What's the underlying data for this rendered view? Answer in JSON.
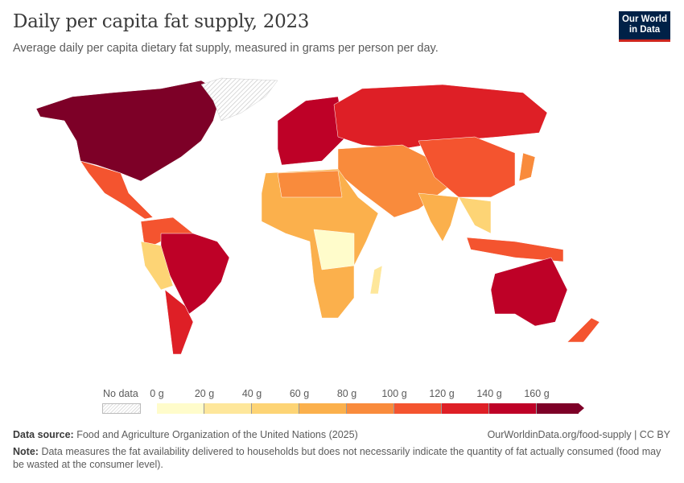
{
  "header": {
    "title": "Daily per capita fat supply, 2023",
    "subtitle": "Average daily per capita dietary fat supply, measured in grams per person per day.",
    "logo": "Our World in Data"
  },
  "legend": {
    "no_data_label": "No data",
    "ticks": [
      "0 g",
      "20 g",
      "40 g",
      "60 g",
      "80 g",
      "100 g",
      "120 g",
      "140 g",
      "160 g"
    ],
    "colors": [
      "#fffccb",
      "#fee79b",
      "#fdd475",
      "#fbb04c",
      "#f98b3c",
      "#f4542f",
      "#de1f26",
      "#be0127",
      "#7d0027"
    ],
    "no_data_color": "#e0e0e0"
  },
  "footer": {
    "source_label": "Data source:",
    "source": "Food and Agriculture Organization of the United Nations (2025)",
    "url": "OurWorldinData.org/food-supply | CC BY",
    "note_label": "Note:",
    "note": "Data measures the fat availability delivered to households but does not necessarily indicate the quantity of fat actually consumed (food may be wasted at the consumer level)."
  }
}
